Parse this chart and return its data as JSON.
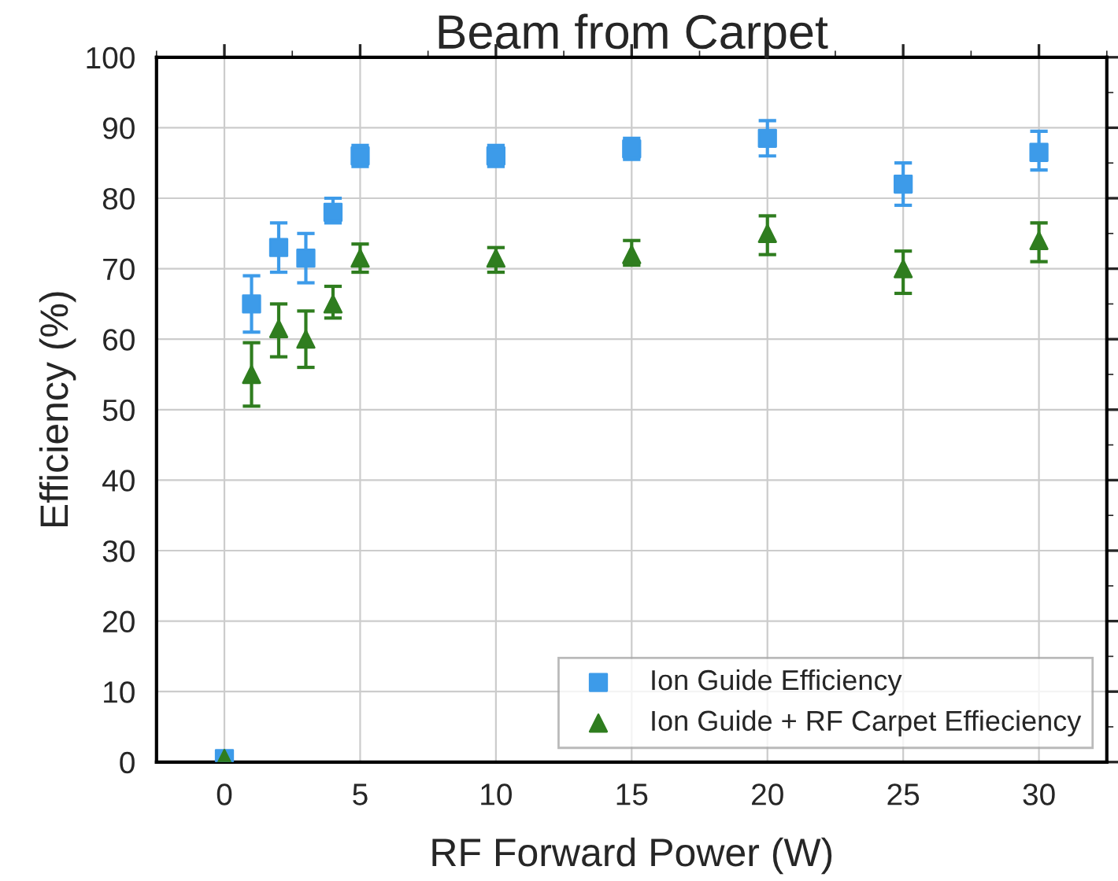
{
  "chart_data": {
    "type": "scatter",
    "title": "Beam from Carpet",
    "xlabel": "RF Forward Power (W)",
    "ylabel": "Efficiency (%)",
    "xlim": [
      -2.5,
      32.5
    ],
    "xticks": [
      0,
      5,
      10,
      15,
      20,
      25,
      30
    ],
    "ylim": [
      0,
      100
    ],
    "yticks": [
      0,
      10,
      20,
      30,
      40,
      50,
      60,
      70,
      80,
      90,
      100
    ],
    "grid": true,
    "legend": "bottom right",
    "series": [
      {
        "name": "Ion Guide Efficiency",
        "color": "#3d9be9",
        "marker": "square",
        "x": [
          0,
          1,
          2,
          3,
          4,
          5,
          10,
          15,
          20,
          25,
          30
        ],
        "values": [
          0.5,
          65,
          73,
          71.5,
          78,
          86,
          86,
          87,
          88.5,
          82,
          86.5
        ],
        "errors": [
          null,
          [
            61,
            69
          ],
          [
            69.5,
            76.5
          ],
          [
            68,
            75
          ],
          [
            76.5,
            80
          ],
          [
            84.5,
            87.5
          ],
          [
            84.5,
            87.5
          ],
          [
            85.5,
            88.5
          ],
          [
            86,
            91
          ],
          [
            79,
            85
          ],
          [
            84,
            89.5
          ]
        ]
      },
      {
        "name": "Ion Guide + RF Carpet Effieciency",
        "color": "#2f7d1f",
        "marker": "triangle",
        "x": [
          0,
          1,
          2,
          3,
          4,
          5,
          10,
          15,
          20,
          25,
          30
        ],
        "values": [
          0.5,
          55,
          61.5,
          60,
          65,
          71.5,
          71.5,
          72,
          75,
          70,
          74
        ],
        "errors": [
          null,
          [
            50.5,
            59.5
          ],
          [
            57.5,
            65
          ],
          [
            56,
            64
          ],
          [
            63,
            67.5
          ],
          [
            69.5,
            73.5
          ],
          [
            69.5,
            73
          ],
          [
            70.5,
            74
          ],
          [
            72,
            77.5
          ],
          [
            66.5,
            72.5
          ],
          [
            71,
            76.5
          ]
        ]
      }
    ]
  }
}
